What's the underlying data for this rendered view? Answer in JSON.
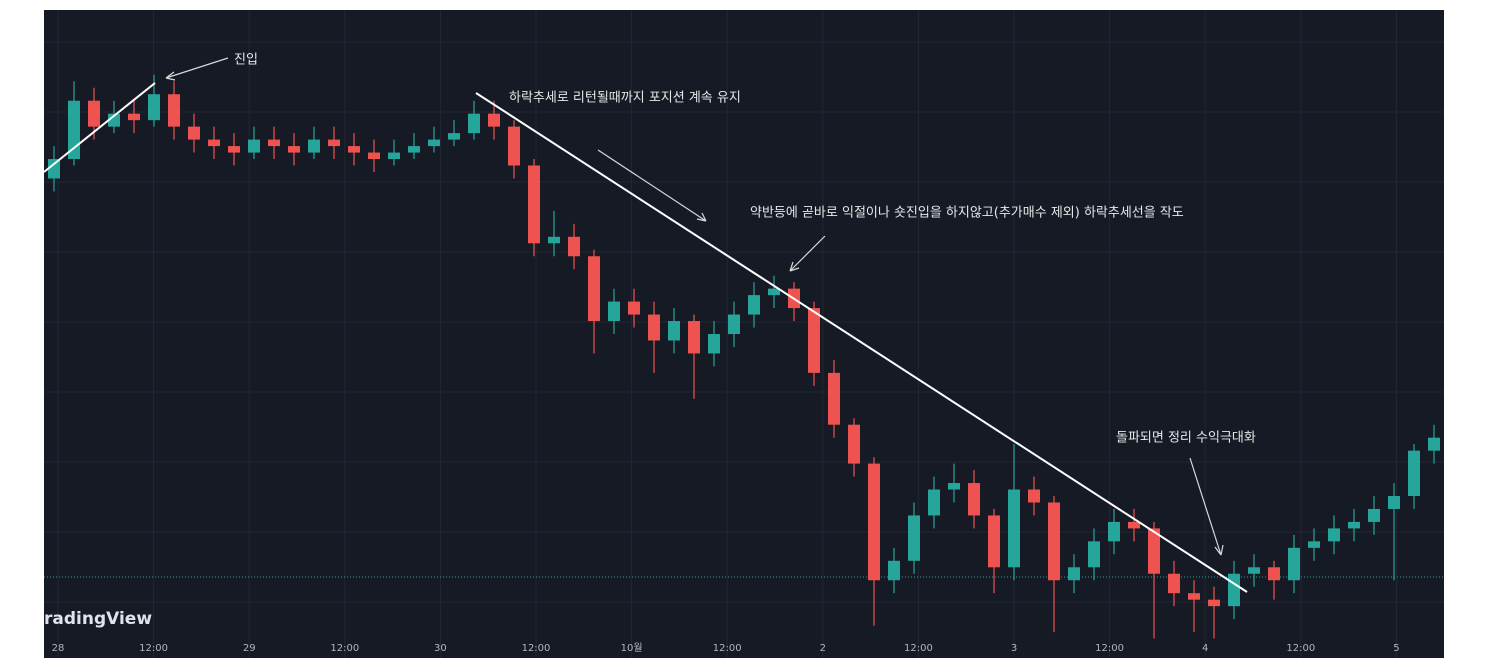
{
  "chart_data": {
    "type": "candlestick",
    "watermark": "radingView",
    "xticks": [
      "28",
      "12:00",
      "29",
      "12:00",
      "30",
      "12:00",
      "10월",
      "12:00",
      "2",
      "12:00",
      "3",
      "12:00",
      "4",
      "12:00",
      "5"
    ],
    "ylim": [
      0,
      100
    ],
    "grid": true,
    "up_color": "#26a69a",
    "down_color": "#ef5350",
    "price_line": 12.5,
    "price_line_color": "#26a69a",
    "open": [
      74,
      77,
      86,
      82,
      84,
      83,
      87,
      82,
      80,
      79,
      78,
      80,
      79,
      78,
      80,
      79,
      78,
      77,
      78,
      79,
      80,
      81,
      84,
      82,
      76,
      64,
      65,
      62,
      52,
      55,
      53,
      49,
      52,
      47,
      50,
      53,
      56,
      57,
      54,
      44,
      36,
      30,
      12,
      15,
      22,
      26,
      27,
      22,
      14,
      26,
      24,
      12,
      14,
      18,
      21,
      20,
      13,
      10,
      9,
      8,
      13,
      14,
      12,
      17,
      18,
      20,
      21,
      23,
      25,
      32
    ],
    "high": [
      79,
      89,
      88,
      86,
      86,
      90,
      89,
      84,
      82,
      81,
      82,
      82,
      81,
      82,
      82,
      81,
      80,
      80,
      81,
      82,
      83,
      86,
      86,
      83,
      77,
      69,
      67,
      63,
      57,
      57,
      55,
      54,
      53,
      52,
      55,
      58,
      59,
      58,
      55,
      46,
      37,
      31,
      17,
      24,
      28,
      30,
      29,
      23,
      33,
      28,
      25,
      16,
      20,
      23,
      23,
      21,
      15,
      12,
      11,
      15,
      16,
      15,
      19,
      20,
      22,
      23,
      25,
      27,
      33,
      36
    ],
    "low": [
      72,
      76,
      80,
      81,
      81,
      82,
      80,
      78,
      77,
      76,
      77,
      77,
      76,
      77,
      77,
      76,
      75,
      76,
      77,
      78,
      79,
      80,
      80,
      74,
      62,
      62,
      60,
      47,
      50,
      51,
      44,
      47,
      40,
      45,
      48,
      51,
      54,
      52,
      42,
      34,
      28,
      5,
      10,
      13,
      20,
      24,
      20,
      10,
      12,
      22,
      4,
      10,
      12,
      16,
      18,
      3,
      8,
      4,
      3,
      6,
      11,
      9,
      10,
      15,
      16,
      18,
      19,
      12,
      23,
      30
    ],
    "close": [
      77,
      86,
      82,
      84,
      83,
      87,
      82,
      80,
      79,
      78,
      80,
      79,
      78,
      80,
      79,
      78,
      77,
      78,
      79,
      80,
      81,
      84,
      82,
      76,
      64,
      65,
      62,
      52,
      55,
      53,
      49,
      52,
      47,
      50,
      53,
      56,
      57,
      54,
      44,
      36,
      30,
      12,
      15,
      22,
      26,
      27,
      22,
      14,
      26,
      24,
      12,
      14,
      18,
      21,
      20,
      13,
      10,
      9,
      8,
      13,
      14,
      12,
      17,
      18,
      20,
      21,
      23,
      25,
      32,
      34
    ]
  },
  "annotations": [
    "진입",
    "하락추세로 리턴될때까지 포지션 계속 유지",
    "약반등에 곧바로 익절이나 숏진입을 하지않고(추가매수 제외) 하락추세선을 작도",
    "돌파되면 정리 수익극대화"
  ]
}
